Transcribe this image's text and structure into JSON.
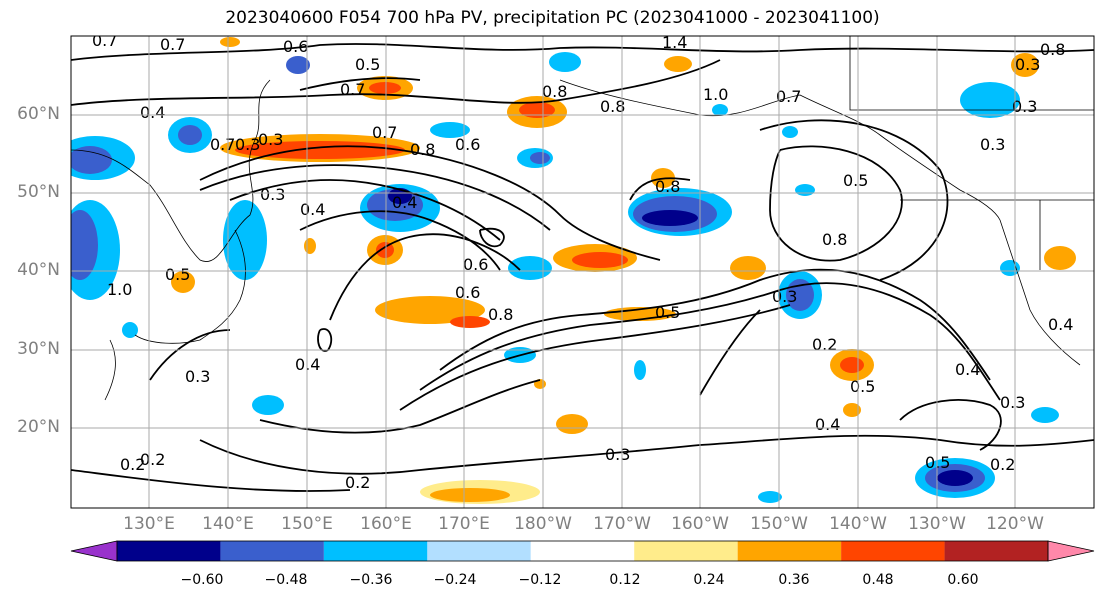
{
  "title": "2023040600 F054 700 hPa PV, precipitation PC (2023041000 - 2023041100)",
  "map": {
    "projection": "plate-carree-pacific",
    "lat_labels": [
      "60°N",
      "50°N",
      "40°N",
      "30°N",
      "20°N"
    ],
    "lon_labels": [
      "130°E",
      "140°E",
      "150°E",
      "160°E",
      "170°E",
      "180°W",
      "170°W",
      "160°W",
      "150°W",
      "140°W",
      "130°W",
      "120°W"
    ],
    "grid": true,
    "contour_color": "#000000",
    "contour_labels": [
      {
        "text": "0.7"
      },
      {
        "text": "0.7"
      },
      {
        "text": "0.6"
      },
      {
        "text": "0.5"
      },
      {
        "text": "0.7"
      },
      {
        "text": "1.4"
      },
      {
        "text": "0.8"
      },
      {
        "text": "1.0"
      },
      {
        "text": "0.8"
      },
      {
        "text": "0.7"
      },
      {
        "text": "0.7"
      },
      {
        "text": "0.8"
      },
      {
        "text": "0.6"
      },
      {
        "text": "0.4"
      },
      {
        "text": "0.4"
      },
      {
        "text": "0.3"
      },
      {
        "text": "0.7"
      },
      {
        "text": "0.8"
      },
      {
        "text": "0.6"
      },
      {
        "text": "0.5"
      },
      {
        "text": "1.0"
      },
      {
        "text": "0.3"
      },
      {
        "text": "0.5"
      },
      {
        "text": "0.2"
      },
      {
        "text": "0.3"
      },
      {
        "text": "0.8"
      },
      {
        "text": "0.4"
      },
      {
        "text": "0.3"
      },
      {
        "text": "0.6"
      },
      {
        "text": "0.5"
      },
      {
        "text": "0.3"
      },
      {
        "text": "0.8"
      },
      {
        "text": "0.4"
      },
      {
        "text": "0.3"
      },
      {
        "text": "0.2"
      },
      {
        "text": "0.4"
      },
      {
        "text": "0.3"
      },
      {
        "text": "0.5"
      },
      {
        "text": "0.4"
      },
      {
        "text": "0.3"
      },
      {
        "text": "0.3"
      },
      {
        "text": "0.2"
      },
      {
        "text": "0.2"
      },
      {
        "text": "0.5"
      },
      {
        "text": "0.2"
      },
      {
        "text": "0.4"
      },
      {
        "text": "0.3"
      },
      {
        "text": "0.8"
      }
    ],
    "shading_colors": {
      "neg_060": "#9932cc",
      "neg_048": "#00008b",
      "neg_036": "#3a5fcd",
      "neg_024": "#00bfff",
      "neg_012": "#b2dfff",
      "pos_012": "#ffec8b",
      "pos_024": "#ffa500",
      "pos_036": "#ff4500",
      "pos_048": "#b22222",
      "pos_060": "#ff88aa"
    }
  },
  "colorbar": {
    "colors": [
      "#9932cc",
      "#00008b",
      "#3a5fcd",
      "#00bfff",
      "#b2dfff",
      "#ffffff",
      "#ffec8b",
      "#ffa500",
      "#ff4500",
      "#b22222",
      "#ff88aa"
    ],
    "ticks": [
      "−0.60",
      "−0.48",
      "−0.36",
      "−0.24",
      "−0.12",
      "0.12",
      "0.24",
      "0.36",
      "0.48",
      "0.60"
    ]
  }
}
